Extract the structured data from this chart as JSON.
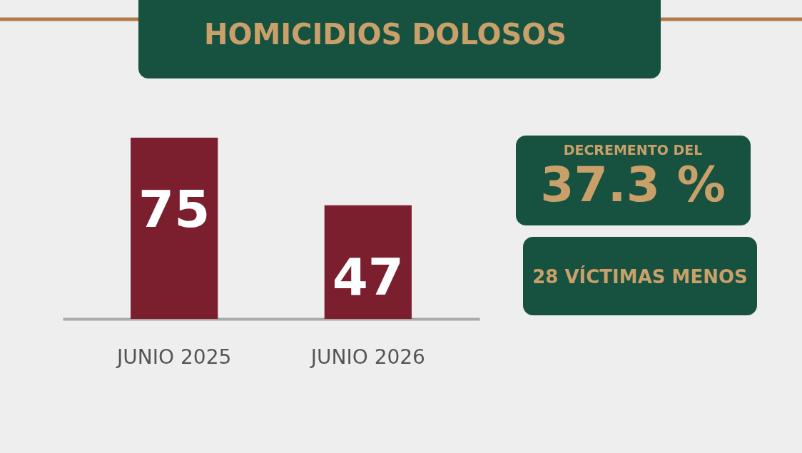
{
  "chart_data": {
    "type": "bar",
    "title": "HOMICIDIOS DOLOSOS",
    "categories": [
      "JUNIO 2025",
      "JUNIO 2026"
    ],
    "values": [
      75,
      47
    ],
    "color": "#7b1e2d",
    "data_labels": true,
    "grid": false,
    "annotations": [
      "DECREMENTO DEL",
      "37.3 %",
      "28 VÍCTIMAS MENOS"
    ]
  }
}
